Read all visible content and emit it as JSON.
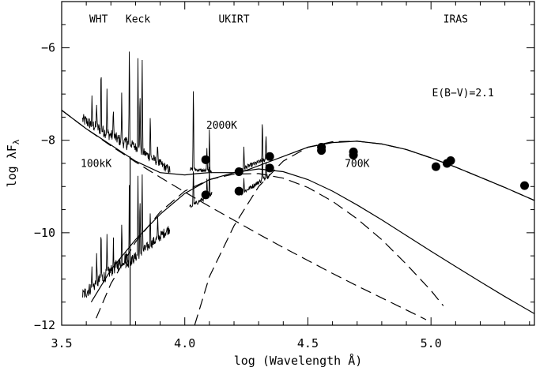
{
  "chart_data": {
    "type": "line",
    "xlabel": "log (Wavelength Å)",
    "ylabel": "log λF",
    "ylabel_subscript": "λ",
    "xlim": [
      3.5,
      5.42
    ],
    "ylim": [
      -12,
      -5
    ],
    "xticks": [
      {
        "value": 3.5,
        "label": "3.5"
      },
      {
        "value": 4.0,
        "label": "4.0"
      },
      {
        "value": 4.5,
        "label": "4.5"
      },
      {
        "value": 5.0,
        "label": "5.0"
      }
    ],
    "yticks": [
      {
        "value": -6,
        "label": "−6"
      },
      {
        "value": -8,
        "label": "−8"
      },
      {
        "value": -10,
        "label": "−10"
      },
      {
        "value": -12,
        "label": "−12"
      }
    ],
    "x_minor_step": 0.1,
    "y_minor_step": 0.5,
    "annotations": [
      {
        "text": "WHT",
        "x": 3.65,
        "y": -5.45
      },
      {
        "text": "Keck",
        "x": 3.81,
        "y": -5.45
      },
      {
        "text": "UKIRT",
        "x": 4.2,
        "y": -5.45
      },
      {
        "text": "IRAS",
        "x": 5.1,
        "y": -5.45
      },
      {
        "text": "E(B−V)=2.1",
        "x": 5.13,
        "y": -7.05
      },
      {
        "text": "2000K",
        "x": 4.15,
        "y": -7.75
      },
      {
        "text": "100kK",
        "x": 3.64,
        "y": -8.58
      },
      {
        "text": "700K",
        "x": 4.7,
        "y": -8.58
      }
    ],
    "series": [
      {
        "style": "solid",
        "x": [
          3.5,
          3.6,
          3.7,
          3.8,
          3.9,
          4.0,
          4.05,
          4.1,
          4.15,
          4.2,
          4.25,
          4.3,
          4.35,
          4.4,
          4.5,
          4.6,
          4.7,
          4.8,
          4.9,
          5.0,
          5.1,
          5.2,
          5.3,
          5.42
        ],
        "y": [
          -7.35,
          -7.75,
          -8.1,
          -8.45,
          -8.7,
          -8.75,
          -8.72,
          -8.7,
          -8.7,
          -8.7,
          -8.65,
          -8.55,
          -8.45,
          -8.35,
          -8.15,
          -8.05,
          -8.02,
          -8.08,
          -8.2,
          -8.38,
          -8.58,
          -8.8,
          -9.02,
          -9.3
        ]
      },
      {
        "style": "solid",
        "x": [
          3.62,
          3.7,
          3.8,
          3.9,
          4.0,
          4.1,
          4.2,
          4.3,
          4.4,
          4.5,
          4.6,
          4.7,
          4.8,
          4.9,
          5.0,
          5.1,
          5.2,
          5.3,
          5.42
        ],
        "y": [
          -11.5,
          -10.8,
          -10.15,
          -9.6,
          -9.15,
          -8.85,
          -8.7,
          -8.62,
          -8.68,
          -8.85,
          -9.1,
          -9.4,
          -9.72,
          -10.06,
          -10.4,
          -10.73,
          -11.06,
          -11.38,
          -11.75
        ]
      },
      {
        "style": "dashed",
        "x": [
          3.5,
          3.6,
          3.7,
          3.8,
          3.9,
          4.0,
          4.1,
          4.2,
          4.3,
          4.4,
          4.5,
          4.6,
          4.7,
          4.8,
          4.9,
          4.98
        ],
        "y": [
          -7.35,
          -7.75,
          -8.12,
          -8.47,
          -8.8,
          -9.12,
          -9.43,
          -9.73,
          -10.03,
          -10.32,
          -10.6,
          -10.88,
          -11.15,
          -11.41,
          -11.67,
          -11.88
        ]
      },
      {
        "style": "dashed",
        "x": [
          3.64,
          3.7,
          3.8,
          3.9,
          4.0,
          4.1,
          4.2,
          4.3,
          4.4,
          4.5,
          4.6,
          4.7,
          4.8,
          4.9,
          5.0,
          5.05
        ],
        "y": [
          -11.85,
          -11.1,
          -10.2,
          -9.55,
          -9.1,
          -8.85,
          -8.73,
          -8.72,
          -8.82,
          -9.02,
          -9.32,
          -9.7,
          -10.15,
          -10.68,
          -11.25,
          -11.58
        ]
      },
      {
        "style": "dashed",
        "x": [
          4.04,
          4.1,
          4.2,
          4.3,
          4.4,
          4.5,
          4.6,
          4.7,
          4.8,
          4.9,
          5.0,
          5.1,
          5.2,
          5.3,
          5.42
        ],
        "y": [
          -12.0,
          -10.95,
          -9.85,
          -9.0,
          -8.45,
          -8.15,
          -8.03,
          -8.02,
          -8.08,
          -8.2,
          -8.38,
          -8.58,
          -8.8,
          -9.02,
          -9.3
        ]
      }
    ],
    "spectra": [
      {
        "name": "WHT",
        "x_start": 3.585,
        "x_end": 3.77,
        "y_start": -7.55,
        "y_end": -8.1,
        "noise": 0.13,
        "lines": [
          3.623,
          3.642,
          3.66,
          3.684,
          3.71,
          3.744
        ],
        "line_heights": [
          0.55,
          0.6,
          1.55,
          0.9,
          0.75,
          1.05
        ]
      },
      {
        "name": "Keck",
        "x_start": 3.76,
        "x_end": 3.94,
        "y_start": -8.0,
        "y_end": -8.65,
        "noise": 0.1,
        "lines": [
          3.775,
          3.81,
          3.818,
          3.827,
          3.86,
          3.89
        ],
        "line_heights": [
          2.35,
          2.25,
          1.5,
          2.3,
          1.05,
          0.45
        ]
      },
      {
        "name": "WHT",
        "x_start": 3.585,
        "x_end": 3.77,
        "y_start": -11.35,
        "y_end": -10.5,
        "noise": 0.14,
        "lines": [
          3.623,
          3.642,
          3.66,
          3.684,
          3.71,
          3.744
        ],
        "line_heights": [
          0.45,
          0.55,
          1.2,
          0.75,
          0.6,
          0.85
        ]
      },
      {
        "name": "Keck",
        "x_start": 3.76,
        "x_end": 3.94,
        "y_start": -10.7,
        "y_end": -9.9,
        "noise": 0.11,
        "lines": [
          3.775,
          3.81,
          3.818,
          3.827,
          3.86,
          3.89
        ],
        "line_heights": [
          2.0,
          1.9,
          1.3,
          1.95,
          0.9,
          0.4
        ]
      },
      {
        "name": "UKIRT",
        "x_start": 4.02,
        "x_end": 4.11,
        "y_start": -8.62,
        "y_end": -8.68,
        "noise": 0.04,
        "lines": [
          4.035,
          4.09,
          4.1
        ],
        "line_heights": [
          2.1,
          0.55,
          1.0
        ]
      },
      {
        "name": "UKIRT",
        "x_start": 4.23,
        "x_end": 4.345,
        "y_start": -8.62,
        "y_end": -8.38,
        "noise": 0.05,
        "lines": [
          4.24,
          4.315,
          4.33
        ],
        "line_heights": [
          0.45,
          1.0,
          0.65
        ]
      },
      {
        "name": "UKIRT",
        "x_start": 4.02,
        "x_end": 4.11,
        "y_start": -9.45,
        "y_end": -9.15,
        "noise": 0.05,
        "lines": [
          4.035,
          4.09,
          4.1
        ],
        "line_heights": [
          0.95,
          0.4,
          0.65
        ]
      },
      {
        "name": "UKIRT",
        "x_start": 4.23,
        "x_end": 4.345,
        "y_start": -9.15,
        "y_end": -8.75,
        "noise": 0.05,
        "lines": [
          4.24,
          4.315,
          4.33
        ],
        "line_heights": [
          0.35,
          0.6,
          0.45
        ]
      }
    ],
    "vertical_markers": [
      {
        "x": 3.778,
        "y_from": -12.0,
        "y_to": -8.35
      }
    ],
    "points": [
      {
        "x": 4.085,
        "y": -8.42
      },
      {
        "x": 4.085,
        "y": -9.18
      },
      {
        "x": 4.22,
        "y": -8.68
      },
      {
        "x": 4.22,
        "y": -9.1
      },
      {
        "x": 4.345,
        "y": -8.35
      },
      {
        "x": 4.345,
        "y": -8.6
      },
      {
        "x": 4.555,
        "y": -8.15
      },
      {
        "x": 4.555,
        "y": -8.22
      },
      {
        "x": 4.685,
        "y": -8.25
      },
      {
        "x": 4.685,
        "y": -8.32
      },
      {
        "x": 5.02,
        "y": -8.57
      },
      {
        "x": 5.065,
        "y": -8.5
      },
      {
        "x": 5.08,
        "y": -8.44
      },
      {
        "x": 5.38,
        "y": -8.98
      }
    ]
  }
}
